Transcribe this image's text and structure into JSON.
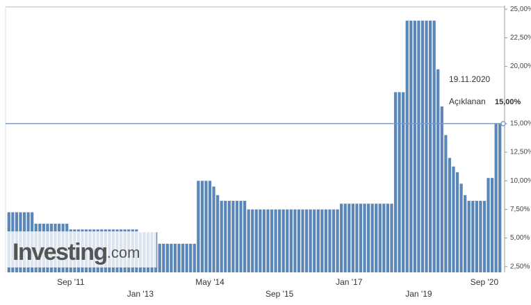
{
  "chart_data": {
    "type": "bar",
    "color": "#5a86b8",
    "ylim": [
      2,
      25.5
    ],
    "yticks": [
      {
        "value": 2.5,
        "label": "2,50%"
      },
      {
        "value": 5,
        "label": "5,00%"
      },
      {
        "value": 7.5,
        "label": "7,50%"
      },
      {
        "value": 10,
        "label": "10,00%"
      },
      {
        "value": 12.5,
        "label": "12,50%"
      },
      {
        "value": 15,
        "label": "15,00%"
      },
      {
        "value": 20,
        "label": "20,00%"
      },
      {
        "value": 22.5,
        "label": "22,50%"
      },
      {
        "value": 25,
        "label": "25,00%"
      }
    ],
    "categories": [
      null,
      null,
      null,
      null,
      null,
      null,
      null,
      null,
      null,
      null,
      null,
      null,
      null,
      null,
      null,
      null,
      "Sep '11",
      null,
      null,
      null,
      null,
      null,
      null,
      null,
      null,
      null,
      null,
      null,
      null,
      null,
      null,
      null,
      null,
      null,
      "Jan '13",
      null,
      null,
      null,
      null,
      null,
      null,
      null,
      null,
      null,
      null,
      null,
      null,
      null,
      null,
      null,
      null,
      null,
      "May '14",
      null,
      null,
      null,
      null,
      null,
      null,
      null,
      null,
      null,
      null,
      null,
      null,
      null,
      null,
      null,
      null,
      null,
      "Sep '15",
      null,
      null,
      null,
      null,
      null,
      null,
      null,
      null,
      null,
      null,
      null,
      null,
      null,
      null,
      null,
      null,
      null,
      "Jan '17",
      null,
      null,
      null,
      null,
      null,
      null,
      null,
      null,
      null,
      null,
      null,
      null,
      null,
      null,
      null,
      null,
      null,
      "Jan '19",
      null,
      null,
      null,
      null,
      null,
      null,
      null,
      null,
      null,
      null,
      null,
      null,
      null,
      null,
      null,
      null,
      "Sep '20",
      null,
      null,
      null,
      null
    ],
    "values": [
      7.25,
      7.25,
      7.25,
      7.25,
      7.25,
      7.25,
      7.25,
      6.25,
      6.25,
      6.25,
      6.25,
      6.25,
      6.25,
      6.25,
      6.25,
      6.25,
      5.75,
      5.75,
      5.75,
      5.75,
      5.75,
      5.75,
      5.75,
      5.75,
      5.75,
      5.75,
      5.75,
      5.75,
      5.75,
      5.75,
      5.75,
      5.75,
      5.75,
      5.75,
      5.5,
      5.5,
      5.5,
      5.5,
      5.5,
      4.5,
      4.5,
      4.5,
      4.5,
      4.5,
      4.5,
      4.5,
      4.5,
      4.5,
      4.5,
      10,
      10,
      10,
      10,
      9.5,
      8.75,
      8.25,
      8.25,
      8.25,
      8.25,
      8.25,
      8.25,
      8.25,
      7.5,
      7.5,
      7.5,
      7.5,
      7.5,
      7.5,
      7.5,
      7.5,
      7.5,
      7.5,
      7.5,
      7.5,
      7.5,
      7.5,
      7.5,
      7.5,
      7.5,
      7.5,
      7.5,
      7.5,
      7.5,
      7.5,
      7.5,
      7.5,
      8,
      8,
      8,
      8,
      8,
      8,
      8,
      8,
      8,
      8,
      8,
      8,
      8,
      8,
      17.75,
      17.75,
      17.75,
      24,
      24,
      24,
      24,
      24,
      24,
      24,
      24,
      19.75,
      16.5,
      14,
      12,
      11.25,
      10.75,
      9.75,
      8.75,
      8.25,
      8.25,
      8.25,
      8.25,
      8.25,
      10.25,
      10.25,
      15,
      15
    ],
    "reference_line": {
      "value": 15,
      "color": "#6f9fd6",
      "date": "19.11.2020",
      "label": "Açıklanan",
      "value_label": "15,00%"
    },
    "logo": {
      "name": "Investing",
      "suffix": ".com"
    }
  }
}
